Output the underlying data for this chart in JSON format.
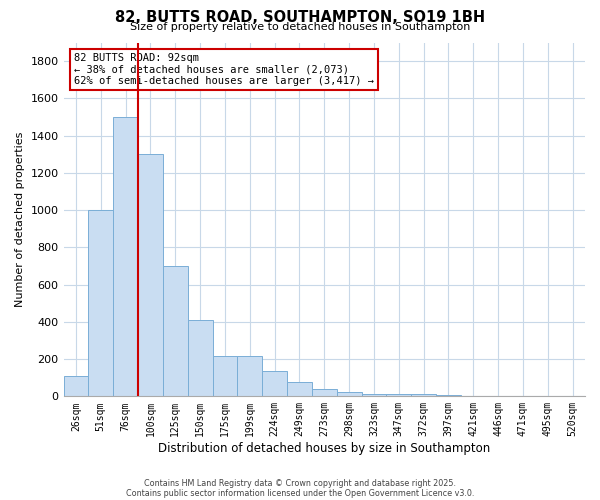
{
  "title": "82, BUTTS ROAD, SOUTHAMPTON, SO19 1BH",
  "subtitle": "Size of property relative to detached houses in Southampton",
  "xlabel": "Distribution of detached houses by size in Southampton",
  "ylabel": "Number of detached properties",
  "bar_color": "#c9ddf2",
  "bar_edge_color": "#7aaed6",
  "background_color": "#ffffff",
  "grid_color": "#c8d8e8",
  "categories": [
    "26sqm",
    "51sqm",
    "76sqm",
    "100sqm",
    "125sqm",
    "150sqm",
    "175sqm",
    "199sqm",
    "224sqm",
    "249sqm",
    "273sqm",
    "298sqm",
    "323sqm",
    "347sqm",
    "372sqm",
    "397sqm",
    "421sqm",
    "446sqm",
    "471sqm",
    "495sqm",
    "520sqm"
  ],
  "values": [
    110,
    1000,
    1500,
    1300,
    700,
    410,
    215,
    215,
    135,
    75,
    40,
    25,
    15,
    10,
    10,
    5,
    0,
    0,
    0,
    0,
    0
  ],
  "ylim": [
    0,
    1900
  ],
  "yticks": [
    0,
    200,
    400,
    600,
    800,
    1000,
    1200,
    1400,
    1600,
    1800
  ],
  "vline_color": "#cc0000",
  "vline_index": 3,
  "annotation_title": "82 BUTTS ROAD: 92sqm",
  "annotation_line1": "← 38% of detached houses are smaller (2,073)",
  "annotation_line2": "62% of semi-detached houses are larger (3,417) →",
  "annotation_box_color": "#ffffff",
  "annotation_box_edge": "#cc0000",
  "footer1": "Contains HM Land Registry data © Crown copyright and database right 2025.",
  "footer2": "Contains public sector information licensed under the Open Government Licence v3.0."
}
